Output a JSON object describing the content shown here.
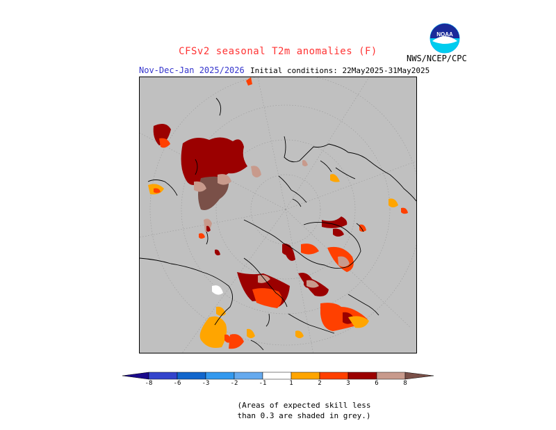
{
  "header": {
    "title": "CFSv2 seasonal T2m anomalies (F)",
    "season": "Nov-Dec-Jan 2025/2026",
    "initial_conditions": "Initial conditions: 22May2025-31May2025",
    "agency": "NWS/NCEP/CPC"
  },
  "logo": {
    "icon": "noaa-logo-icon",
    "text": "NOAA"
  },
  "legend": {
    "labels": [
      "-8",
      "-6",
      "-3",
      "-2",
      "-1",
      "1",
      "2",
      "3",
      "6",
      "8"
    ],
    "colors": {
      "below_8": "#1a0a8c",
      "m8_m6": "#3344cc",
      "m6_m3": "#1166cc",
      "m3_m2": "#3399ee",
      "m2_m1": "#66aaee",
      "m1_1": "#ffffff",
      "p1_p2": "#ffa500",
      "p2_p3": "#ff4000",
      "p3_p6": "#9b0000",
      "p6_p8": "#c89a8c",
      "above_8": "#7a5048"
    }
  },
  "note": {
    "line1": "(Areas of expected skill less",
    "line2": "than 0.3 are shaded in grey.)"
  },
  "map": {
    "projection": "polar-stereographic-north",
    "background": "#c0c0c0"
  }
}
